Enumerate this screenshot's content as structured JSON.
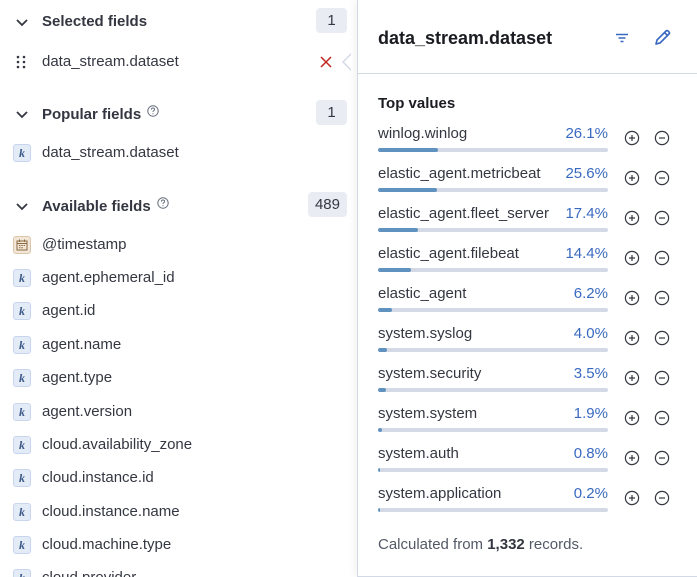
{
  "sidebar": {
    "selected": {
      "title": "Selected fields",
      "count": "1",
      "fields": [
        {
          "name": "data_stream.dataset"
        }
      ]
    },
    "popular": {
      "title": "Popular fields",
      "count": "1",
      "fields": [
        {
          "name": "data_stream.dataset",
          "type_glyph": "k"
        }
      ]
    },
    "available": {
      "title": "Available fields",
      "count": "489",
      "fields": [
        {
          "name": "@timestamp",
          "type": "date"
        },
        {
          "name": "agent.ephemeral_id",
          "type_glyph": "k"
        },
        {
          "name": "agent.id",
          "type_glyph": "k"
        },
        {
          "name": "agent.name",
          "type_glyph": "k"
        },
        {
          "name": "agent.type",
          "type_glyph": "k"
        },
        {
          "name": "agent.version",
          "type_glyph": "k"
        },
        {
          "name": "cloud.availability_zone",
          "type_glyph": "k"
        },
        {
          "name": "cloud.instance.id",
          "type_glyph": "k"
        },
        {
          "name": "cloud.instance.name",
          "type_glyph": "k"
        },
        {
          "name": "cloud.machine.type",
          "type_glyph": "k"
        },
        {
          "name": "cloud.provider",
          "type_glyph": "k"
        }
      ]
    }
  },
  "popover": {
    "title": "data_stream.dataset",
    "top_values_title": "Top values",
    "top_values": [
      {
        "label": "winlog.winlog",
        "percent": "26.1%",
        "fraction": 0.261
      },
      {
        "label": "elastic_agent.metricbeat",
        "percent": "25.6%",
        "fraction": 0.256
      },
      {
        "label": "elastic_agent.fleet_server",
        "percent": "17.4%",
        "fraction": 0.174
      },
      {
        "label": "elastic_agent.filebeat",
        "percent": "14.4%",
        "fraction": 0.144
      },
      {
        "label": "elastic_agent",
        "percent": "6.2%",
        "fraction": 0.062
      },
      {
        "label": "system.syslog",
        "percent": "4.0%",
        "fraction": 0.04
      },
      {
        "label": "system.security",
        "percent": "3.5%",
        "fraction": 0.035
      },
      {
        "label": "system.system",
        "percent": "1.9%",
        "fraction": 0.019
      },
      {
        "label": "system.auth",
        "percent": "0.8%",
        "fraction": 0.008
      },
      {
        "label": "system.application",
        "percent": "0.2%",
        "fraction": 0.002
      }
    ],
    "footer": {
      "prefix": "Calculated from ",
      "count": "1,332",
      "suffix": " records."
    }
  },
  "icons": {
    "chevron": "chevron-down-icon",
    "help": "question-circle-icon",
    "drag": "drag-handle-icon",
    "remove": "cross-icon",
    "filter": "filter-icon",
    "edit": "pencil-icon",
    "plus": "plus-in-circle-icon",
    "minus": "minus-in-circle-icon"
  },
  "colors": {
    "accent": "#3969c0",
    "bar_fill": "#6092c0",
    "bar_track": "#d3dae6",
    "remove": "#bd271e"
  }
}
